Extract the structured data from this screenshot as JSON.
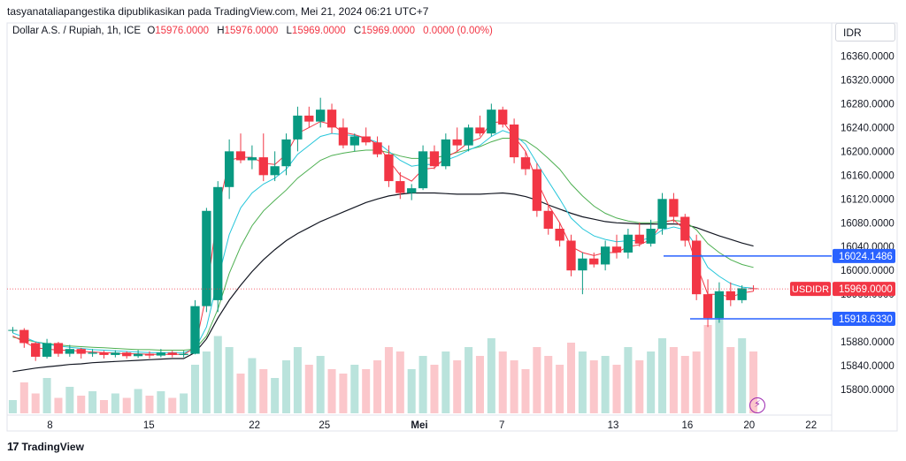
{
  "header": {
    "published_by": "tasyanataliapangestika dipublikasikan pada TradingView.com, Mei 21, 2024 06:21 UTC+7",
    "symbol": "Dollar A.S. / Rupiah, 1h, ICE",
    "ohlc": [
      {
        "k": "O",
        "v": "15976.0000"
      },
      {
        "k": "H",
        "v": "15976.0000"
      },
      {
        "k": "L",
        "v": "15969.0000"
      },
      {
        "k": "C",
        "v": "15969.0000"
      }
    ],
    "change": "0.0000 (0.00%)",
    "currency": "IDR"
  },
  "branding": {
    "logo": "17",
    "name": "TradingView"
  },
  "colors": {
    "up": "#089981",
    "down": "#f23645",
    "ema_fast": "#f23645",
    "ema_mid": "#26c6da",
    "ema_slow": "#4caf50",
    "sma_long": "#131722",
    "level_line": "#2962ff",
    "lightning_icon": "#9c27b0"
  },
  "chart_data": {
    "type": "candlestick",
    "symbol": "USDIDR",
    "ylim": [
      15760,
      16380
    ],
    "yticks": [
      "16360.0000",
      "16320.0000",
      "16280.0000",
      "16240.0000",
      "16200.0000",
      "16160.0000",
      "16120.0000",
      "16080.0000",
      "16040.0000",
      "16000.0000",
      "15960.0000",
      "15920.0000",
      "15880.0000",
      "15840.0000",
      "15800.0000"
    ],
    "xticks": [
      "8",
      "15",
      "22",
      "25",
      "Mei",
      "7",
      "13",
      "16",
      "20",
      "22"
    ],
    "price_labels": [
      {
        "label": "16024.1486",
        "value": 16024.1486,
        "color": "#2962ff"
      },
      {
        "label": "USDIDR",
        "value": 15969.0,
        "color": "#f23645",
        "price": "15969.0000"
      },
      {
        "label": "15918.6330",
        "value": 15918.633,
        "color": "#2962ff"
      }
    ],
    "horizontal_levels": [
      16024.1486,
      15918.633
    ],
    "last_price": 15969.0,
    "candles": [
      [
        15900,
        15905,
        15895,
        15900
      ],
      [
        15900,
        15903,
        15870,
        15878
      ],
      [
        15878,
        15880,
        15848,
        15855
      ],
      [
        15855,
        15885,
        15852,
        15878
      ],
      [
        15878,
        15880,
        15855,
        15860
      ],
      [
        15860,
        15875,
        15855,
        15868
      ],
      [
        15868,
        15870,
        15852,
        15860
      ],
      [
        15860,
        15868,
        15855,
        15862
      ],
      [
        15862,
        15865,
        15852,
        15858
      ],
      [
        15858,
        15866,
        15854,
        15862
      ],
      [
        15862,
        15864,
        15852,
        15856
      ],
      [
        15856,
        15866,
        15853,
        15860
      ],
      [
        15860,
        15864,
        15852,
        15857
      ],
      [
        15857,
        15868,
        15854,
        15862
      ],
      [
        15862,
        15865,
        15854,
        15858
      ],
      [
        15858,
        15865,
        15854,
        15860
      ],
      [
        15860,
        15950,
        15859,
        15940
      ],
      [
        15940,
        16105,
        15930,
        16100
      ],
      [
        15950,
        16150,
        15930,
        16140
      ],
      [
        16140,
        16220,
        16120,
        16200
      ],
      [
        16200,
        16230,
        16180,
        16185
      ],
      [
        16185,
        16210,
        16170,
        16190
      ],
      [
        16190,
        16230,
        16150,
        16160
      ],
      [
        16160,
        16200,
        16150,
        16175
      ],
      [
        16175,
        16230,
        16160,
        16220
      ],
      [
        16220,
        16275,
        16200,
        16260
      ],
      [
        16260,
        16275,
        16240,
        16250
      ],
      [
        16250,
        16290,
        16240,
        16270
      ],
      [
        16270,
        16280,
        16230,
        16240
      ],
      [
        16240,
        16255,
        16205,
        16210
      ],
      [
        16210,
        16230,
        16200,
        16225
      ],
      [
        16225,
        16240,
        16210,
        16215
      ],
      [
        16215,
        16225,
        16190,
        16195
      ],
      [
        16195,
        16210,
        16140,
        16150
      ],
      [
        16150,
        16165,
        16120,
        16130
      ],
      [
        16130,
        16145,
        16118,
        16138
      ],
      [
        16138,
        16210,
        16135,
        16200
      ],
      [
        16200,
        16210,
        16170,
        16175
      ],
      [
        16175,
        16230,
        16170,
        16220
      ],
      [
        16220,
        16240,
        16200,
        16210
      ],
      [
        16210,
        16245,
        16200,
        16240
      ],
      [
        16240,
        16260,
        16225,
        16230
      ],
      [
        16230,
        16280,
        16225,
        16270
      ],
      [
        16270,
        16275,
        16240,
        16245
      ],
      [
        16245,
        16255,
        16180,
        16190
      ],
      [
        16190,
        16200,
        16160,
        16170
      ],
      [
        16170,
        16180,
        16090,
        16100
      ],
      [
        16100,
        16110,
        16060,
        16070
      ],
      [
        16070,
        16080,
        16040,
        16050
      ],
      [
        16050,
        16060,
        15990,
        16000
      ],
      [
        16000,
        16030,
        15960,
        16020
      ],
      [
        16020,
        16030,
        16005,
        16010
      ],
      [
        16010,
        16050,
        16000,
        16040
      ],
      [
        16040,
        16060,
        16020,
        16030
      ],
      [
        16030,
        16070,
        16020,
        16060
      ],
      [
        16060,
        16080,
        16040,
        16045
      ],
      [
        16045,
        16085,
        16040,
        16070
      ],
      [
        16070,
        16130,
        16060,
        16120
      ],
      [
        16120,
        16130,
        16080,
        16090
      ],
      [
        16090,
        16095,
        16040,
        16050
      ],
      [
        16050,
        16060,
        15950,
        15960
      ],
      [
        15960,
        15985,
        15905,
        15920
      ],
      [
        15920,
        15980,
        15912,
        15965
      ],
      [
        15965,
        15980,
        15940,
        15950
      ],
      [
        15950,
        15975,
        15945,
        15970
      ],
      [
        15970,
        15975,
        15965,
        15969
      ]
    ],
    "ema_fast": [
      15890,
      15880,
      15870,
      15868,
      15866,
      15866,
      15864,
      15863,
      15862,
      15861,
      15860,
      15860,
      15859,
      15859,
      15859,
      15859,
      15870,
      15960,
      16100,
      16185,
      16190,
      16190,
      16180,
      16178,
      16195,
      16230,
      16240,
      16250,
      16245,
      16232,
      16228,
      16222,
      16212,
      16185,
      16160,
      16150,
      16170,
      16172,
      16190,
      16200,
      16215,
      16222,
      16248,
      16250,
      16225,
      16200,
      16150,
      16110,
      16080,
      16040,
      16030,
      16025,
      16030,
      16030,
      16040,
      16043,
      16052,
      16080,
      16085,
      16068,
      16010,
      15960,
      15960,
      15955,
      15962,
      15965
    ],
    "ema_mid": [
      15895,
      15888,
      15880,
      15876,
      15873,
      15871,
      15869,
      15867,
      15866,
      15865,
      15864,
      15863,
      15862,
      15862,
      15862,
      15862,
      15868,
      15905,
      15985,
      16060,
      16105,
      16130,
      16145,
      16155,
      16170,
      16195,
      16210,
      16225,
      16230,
      16228,
      16226,
      16222,
      16215,
      16200,
      16185,
      16175,
      16178,
      16178,
      16185,
      16192,
      16202,
      16210,
      16225,
      16235,
      16228,
      16212,
      16180,
      16150,
      16120,
      16088,
      16070,
      16058,
      16052,
      16048,
      16050,
      16050,
      16055,
      16068,
      16073,
      16068,
      16040,
      16005,
      15990,
      15978,
      15972,
      15970
    ],
    "ema_slow": [
      15888,
      15884,
      15880,
      15877,
      15875,
      15873,
      15872,
      15871,
      15870,
      15869,
      15868,
      15867,
      15867,
      15866,
      15866,
      15866,
      15868,
      15890,
      15935,
      15995,
      16040,
      16075,
      16100,
      16118,
      16135,
      16155,
      16170,
      16185,
      16193,
      16197,
      16200,
      16202,
      16202,
      16198,
      16192,
      16188,
      16188,
      16189,
      16193,
      16198,
      16203,
      16208,
      16216,
      16222,
      16222,
      16218,
      16205,
      16188,
      16170,
      16145,
      16125,
      16108,
      16096,
      16088,
      16083,
      16080,
      16080,
      16082,
      16084,
      16082,
      16068,
      16045,
      16030,
      16018,
      16010,
      16005
    ],
    "sma_long": [
      15830,
      15833,
      15836,
      15838,
      15840,
      15842,
      15843,
      15845,
      15846,
      15847,
      15848,
      15849,
      15850,
      15851,
      15852,
      15852,
      15862,
      15885,
      15920,
      15950,
      15975,
      15998,
      16018,
      16035,
      16050,
      16062,
      16072,
      16082,
      16090,
      16098,
      16106,
      16114,
      16120,
      16125,
      16128,
      16130,
      16130,
      16130,
      16129,
      16128,
      16128,
      16128,
      16129,
      16130,
      16128,
      16124,
      16118,
      16110,
      16103,
      16096,
      16090,
      16086,
      16082,
      16080,
      16079,
      16078,
      16078,
      16078,
      16078,
      16077,
      16072,
      16065,
      16058,
      16052,
      16046,
      16041
    ],
    "volume": [
      6,
      14,
      9,
      16,
      7,
      12,
      8,
      10,
      6,
      9,
      7,
      11,
      8,
      10,
      7,
      9,
      22,
      28,
      35,
      30,
      18,
      25,
      20,
      16,
      24,
      30,
      22,
      26,
      20,
      18,
      22,
      20,
      24,
      30,
      28,
      20,
      26,
      22,
      28,
      24,
      30,
      26,
      34,
      28,
      24,
      20,
      30,
      26,
      22,
      32,
      28,
      24,
      26,
      22,
      30,
      24,
      28,
      34,
      30,
      26,
      28,
      40,
      44,
      30,
      34,
      28
    ]
  }
}
